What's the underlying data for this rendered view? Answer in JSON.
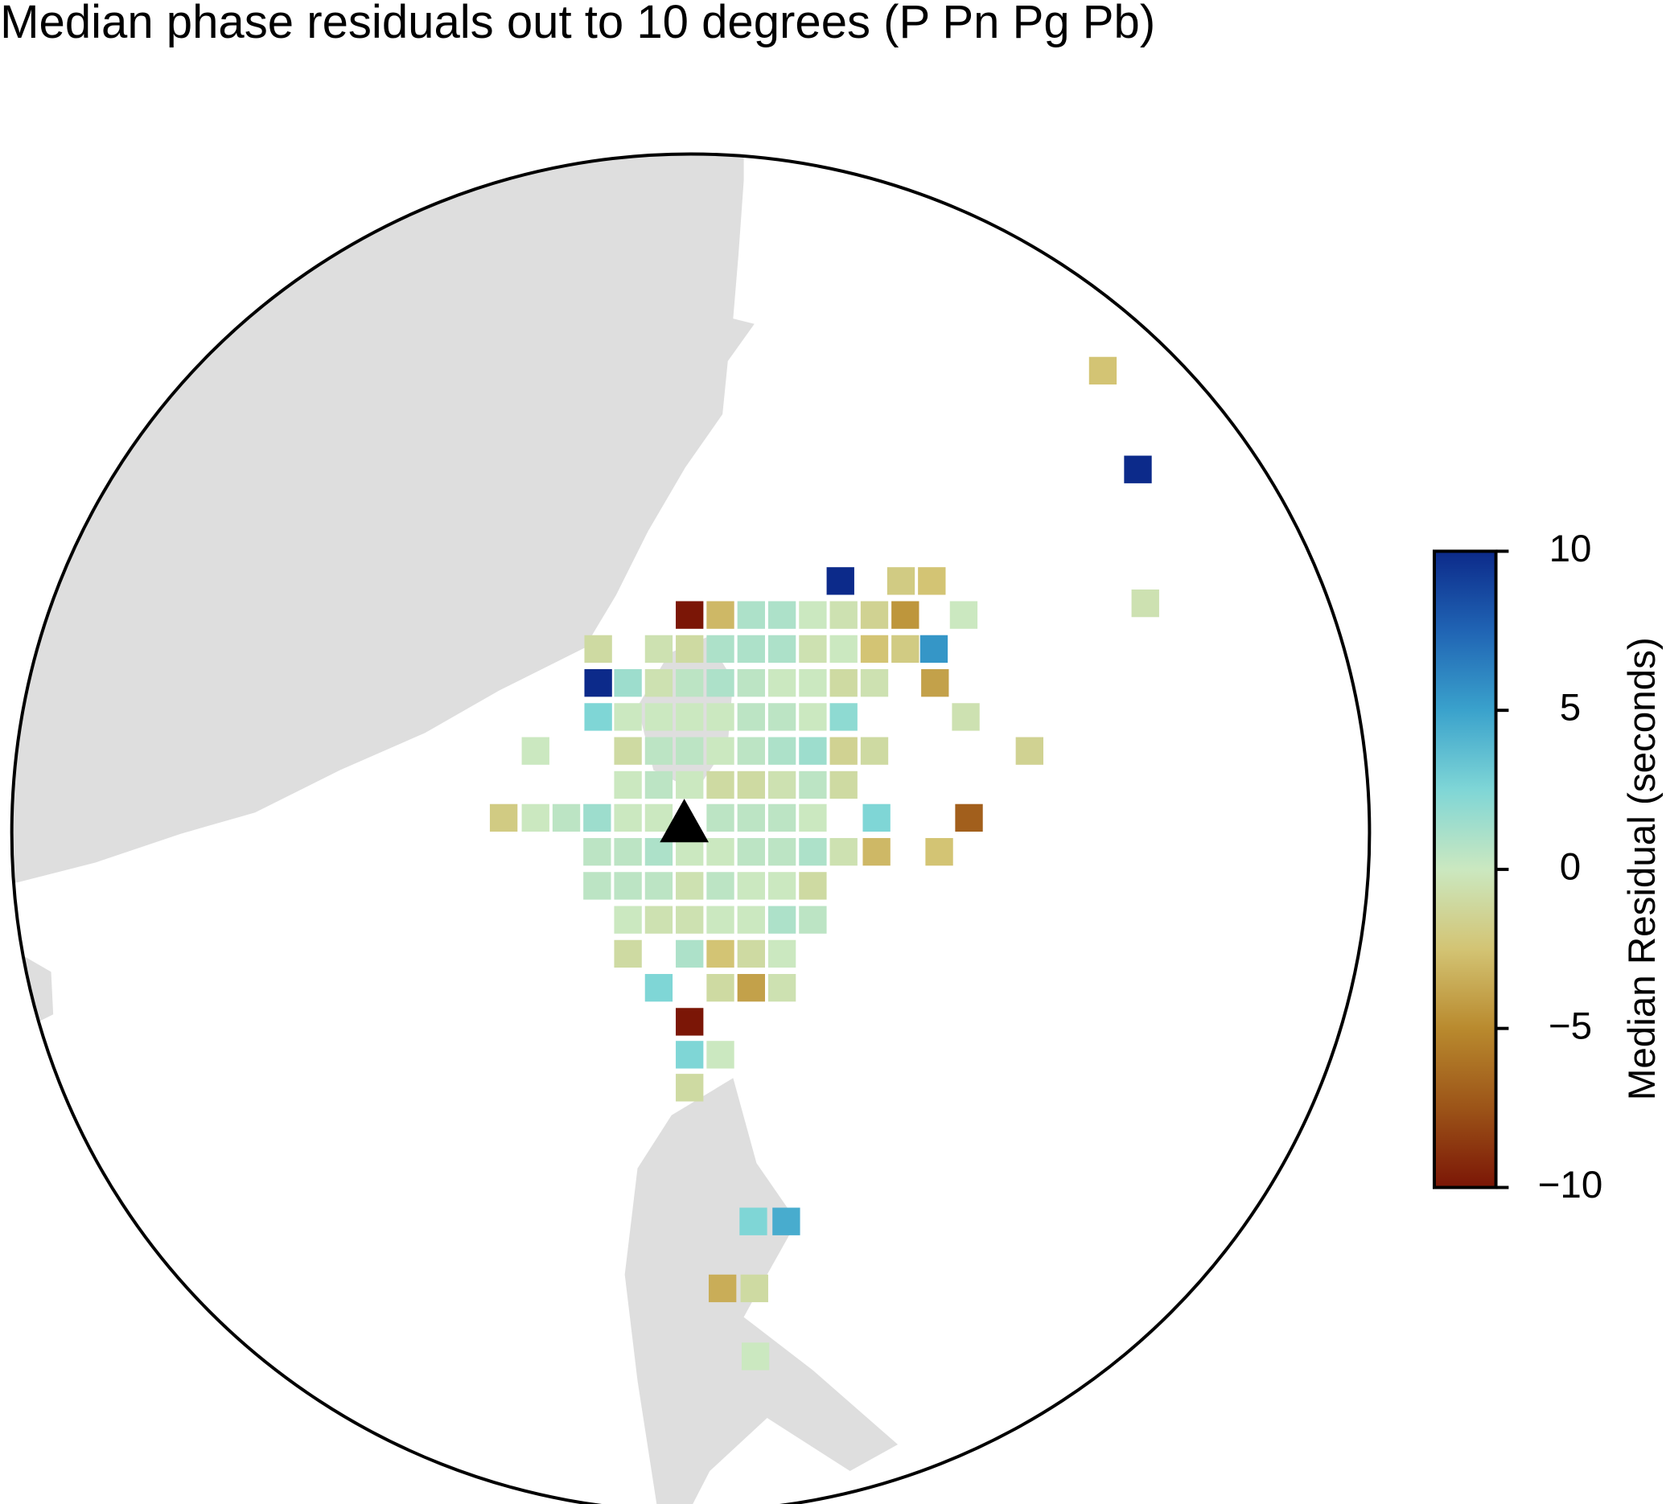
{
  "chart_data": {
    "type": "map",
    "title": "Median phase residuals out to 10 degrees (P Pn Pg Pb)",
    "colorbar_label": "Median Residual (seconds)",
    "clim": [
      -10,
      10
    ],
    "cticks": [
      {
        "value": -10,
        "label": "−10"
      },
      {
        "value": -5,
        "label": "−5"
      },
      0,
      5,
      10
    ],
    "colormap": [
      "#7b1606",
      "#9c5418",
      "#b98a2e",
      "#d3c474",
      "#cbe8c0",
      "#7fd6d6",
      "#3aa2cc",
      "#2064b4",
      "#0c2a8a"
    ],
    "values": [
      -2.5,
      10,
      10,
      -2,
      -2.5,
      -0.5,
      -10,
      -3,
      1,
      1,
      0,
      -0.5,
      -1.5,
      -4.5,
      0,
      -1,
      -0.5,
      -1,
      1,
      1,
      1,
      -0.5,
      0,
      -2.5,
      -2,
      5.5,
      10,
      1.5,
      -0.5,
      0.5,
      1,
      0.5,
      0,
      0,
      -1,
      -0.5,
      -4,
      2.5,
      0,
      0,
      0,
      0,
      0.5,
      0.5,
      0,
      2,
      -0.5,
      0,
      -1,
      0.5,
      0.5,
      0,
      0.5,
      1,
      1.5,
      -1.5,
      -1,
      -1.5,
      0,
      0.5,
      0,
      -1,
      -1,
      -0.5,
      0.5,
      -1,
      -2,
      0,
      0.5,
      1.5,
      0,
      0,
      0.5,
      0.5,
      0.5,
      0,
      2.5,
      -7,
      0.5,
      0.5,
      1,
      0,
      0,
      0.5,
      0.5,
      1,
      -0.5,
      -3,
      -2.5,
      0.5,
      0.5,
      0.5,
      -0.5,
      0.5,
      0,
      0,
      -1,
      0,
      -0.5,
      -0.5,
      0,
      0,
      1,
      0.5,
      -1,
      1,
      -2.5,
      -1,
      0,
      2.5,
      -1,
      -4,
      -0.5,
      -10,
      2.5,
      0,
      -1,
      2.5,
      4.5,
      -3.5,
      -1,
      0
    ]
  }
}
